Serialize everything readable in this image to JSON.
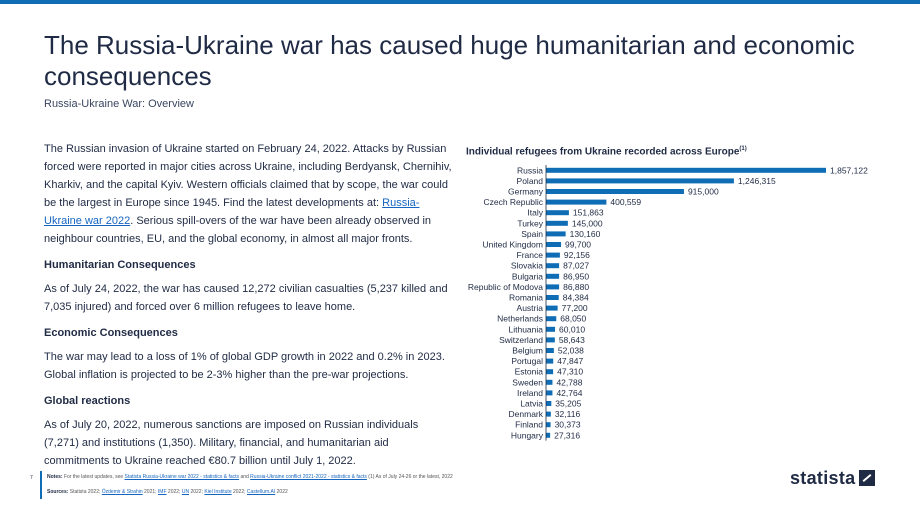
{
  "header": {
    "title": "The Russia-Ukraine war has caused huge humanitarian and economic consequences",
    "subtitle": "Russia-Ukraine War: Overview"
  },
  "body": {
    "intro_before_link": "The Russian invasion of Ukraine started on February 24, 2022. Attacks by Russian forced were reported in major cities across Ukraine, including Berdyansk, Chernihiv, Kharkiv, and the capital Kyiv. Western officials claimed that by scope, the war could be the largest in Europe since 1945. Find the latest developments at: ",
    "intro_link": "Russia-Ukraine war 2022",
    "intro_after_link": ". Serious spill-overs of the war have been already observed in neighbour countries, EU, and the global economy, in almost all major fronts.",
    "sections": [
      {
        "heading": "Humanitarian Consequences",
        "text": "As of July 24, 2022, the war has caused 12,272 civilian casualties (5,237 killed and 7,035 injured) and forced over 6 million refugees to leave home."
      },
      {
        "heading": "Economic Consequences",
        "text": "The war may lead to a loss of 1% of global GDP growth in 2022 and 0.2% in 2023. Global inflation is projected to be 2-3% higher than the pre-war projections."
      },
      {
        "heading": "Global reactions",
        "text": "As of July 20, 2022, numerous sanctions are imposed on Russian individuals (7,271) and institutions (1,350). Military, financial, and humanitarian aid commitments to Ukraine reached €80.7 billion until July 1, 2022."
      }
    ]
  },
  "chart_data": {
    "type": "bar",
    "orientation": "horizontal",
    "title": "Individual refugees from Ukraine recorded across Europe",
    "title_superscript": "(1)",
    "categories": [
      "Russia",
      "Poland",
      "Germany",
      "Czech Republic",
      "Italy",
      "Turkey",
      "Spain",
      "United Kingdom",
      "France",
      "Slovakia",
      "Bulgaria",
      "Republic of Modova",
      "Romania",
      "Austria",
      "Netherlands",
      "Lithuania",
      "Switzerland",
      "Belgium",
      "Portugal",
      "Estonia",
      "Sweden",
      "Ireland",
      "Latvia",
      "Denmark",
      "Finland",
      "Hungary"
    ],
    "values": [
      1857122,
      1246315,
      915000,
      400559,
      151863,
      145000,
      130160,
      99700,
      92156,
      87027,
      86950,
      86880,
      84384,
      77200,
      68050,
      60010,
      58643,
      52038,
      47847,
      47310,
      42788,
      42764,
      35205,
      32116,
      30373,
      27316
    ],
    "value_labels": [
      "1,857,122",
      "1,246,315",
      "915,000",
      "400,559",
      "151,863",
      "145,000",
      "130,160",
      "99,700",
      "92,156",
      "87,027",
      "86,950",
      "86,880",
      "84,384",
      "77,200",
      "68,050",
      "60,010",
      "58,643",
      "52,038",
      "47,847",
      "47,310",
      "42,788",
      "42,764",
      "35,205",
      "32,116",
      "30,373",
      "27,316"
    ],
    "xlim": [
      0,
      1857122
    ],
    "bar_color": "#0f6db5",
    "grid": false,
    "legend": "none"
  },
  "footer": {
    "page_number": "7",
    "notes_label": "Notes:",
    "notes_prefix": "For the latest updates, see",
    "notes_link1": "Statista Russia-Ukraine war 2022 - statistics & facts",
    "notes_and": "and",
    "notes_link2": "Russia-Ukraine conflict 2021-2022 - statistics & facts",
    "notes_suffix": "(1) As of July 24-26 or the latest, 2022",
    "sources_label": "Sources:",
    "sources_prefix": "Statista 2022;",
    "source_links": [
      "Özdemir & Strahin",
      "IMF",
      "UN",
      "Kiel Institute",
      "Castellum.AI"
    ],
    "source_suffixes": [
      " 2021; ",
      " 2022; ",
      " 2022; ",
      " 2022; ",
      " 2022"
    ],
    "logo_text": "statista",
    "accent_color": "#0f6db5"
  }
}
